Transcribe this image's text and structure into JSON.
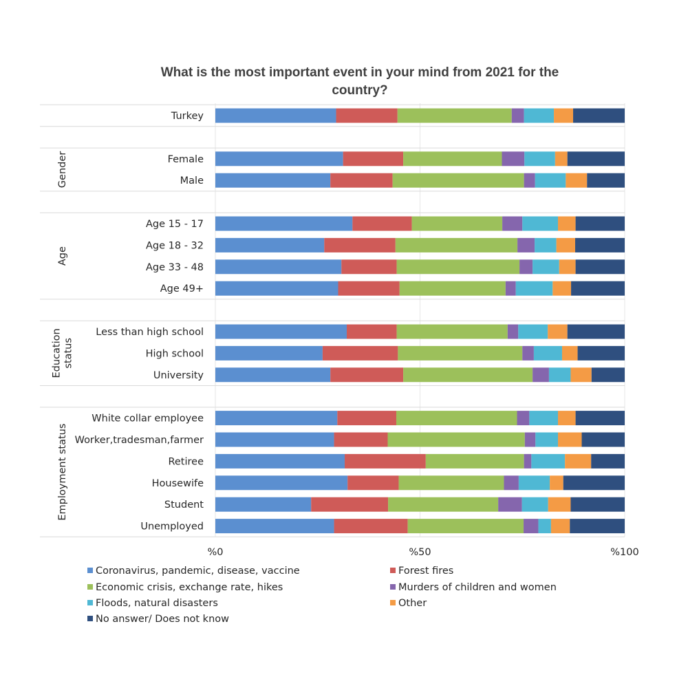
{
  "chart_data": {
    "type": "bar",
    "orientation": "horizontal",
    "stacked": "percent",
    "title": "What is the most important event in your mind from 2021 for the country?",
    "xlim": [
      0,
      100
    ],
    "x_ticks": [
      "%0",
      "%50",
      "%100"
    ],
    "grid": true,
    "legend_position": "bottom",
    "groups": [
      {
        "label": "",
        "categories": [
          "Turkey"
        ]
      },
      {
        "label": "Gender",
        "categories": [
          "Female",
          "Male"
        ]
      },
      {
        "label": "Age",
        "categories": [
          "Age 15 - 17",
          "Age 18 - 32",
          "Age 33 - 48",
          "Age 49+"
        ]
      },
      {
        "label": "Education status",
        "categories": [
          "Less than high school",
          "High school",
          "University"
        ]
      },
      {
        "label": "Employment status",
        "categories": [
          "White collar employee",
          "Worker,tradesman,farmer",
          "Retiree",
          "Housewife",
          "Student",
          "Unemployed"
        ]
      }
    ],
    "categories": [
      "Turkey",
      "Female",
      "Male",
      "Age 15 - 17",
      "Age 18 - 32",
      "Age 33 - 48",
      "Age 49+",
      "Less than high school",
      "High school",
      "University",
      "White collar employee",
      "Worker,tradesman,farmer",
      "Retiree",
      "Housewife",
      "Student",
      "Unemployed"
    ],
    "series": [
      {
        "name": "Coronavirus, pandemic, disease, vaccine",
        "color": "#5b8fd0",
        "values": [
          29.5,
          31.2,
          28.1,
          33.5,
          26.6,
          30.8,
          30.0,
          32.1,
          26.2,
          28.1,
          29.8,
          29.0,
          31.6,
          32.3,
          23.4,
          29.0
        ]
      },
      {
        "name": "Forest fires",
        "color": "#cf5b58",
        "values": [
          15.0,
          14.7,
          15.2,
          14.5,
          17.4,
          13.5,
          15.0,
          12.2,
          18.4,
          17.8,
          14.4,
          13.1,
          19.8,
          12.5,
          18.8,
          18.0
        ]
      },
      {
        "name": "Economic crisis, exchange rate, hikes",
        "color": "#9cc05b",
        "values": [
          27.9,
          24.1,
          32.1,
          22.1,
          29.8,
          30.0,
          25.9,
          27.1,
          30.4,
          31.6,
          29.5,
          33.5,
          24.0,
          25.7,
          26.9,
          28.3
        ]
      },
      {
        "name": "Murders of children and women",
        "color": "#8566ad",
        "values": [
          3.0,
          5.5,
          2.7,
          4.9,
          4.2,
          3.2,
          2.5,
          2.6,
          2.8,
          4.0,
          3.0,
          2.6,
          1.8,
          3.6,
          5.8,
          3.6
        ]
      },
      {
        "name": "Floods, natural disasters",
        "color": "#4fb8d4",
        "values": [
          7.3,
          7.5,
          7.5,
          8.7,
          5.3,
          6.5,
          9.0,
          7.2,
          6.9,
          5.3,
          7.0,
          5.5,
          8.2,
          7.6,
          6.4,
          3.1
        ]
      },
      {
        "name": "Other",
        "color": "#f49b45",
        "values": [
          4.7,
          3.0,
          5.2,
          4.3,
          4.6,
          4.0,
          4.5,
          4.8,
          3.8,
          5.1,
          4.3,
          5.8,
          6.4,
          3.3,
          5.5,
          4.6
        ]
      },
      {
        "name": "No answer/ Does not know",
        "color": "#2f4f7f",
        "values": [
          12.6,
          14.0,
          9.2,
          12.0,
          12.1,
          12.0,
          13.1,
          14.0,
          11.5,
          8.1,
          12.0,
          10.5,
          8.2,
          15.0,
          13.2,
          13.4
        ]
      }
    ]
  }
}
